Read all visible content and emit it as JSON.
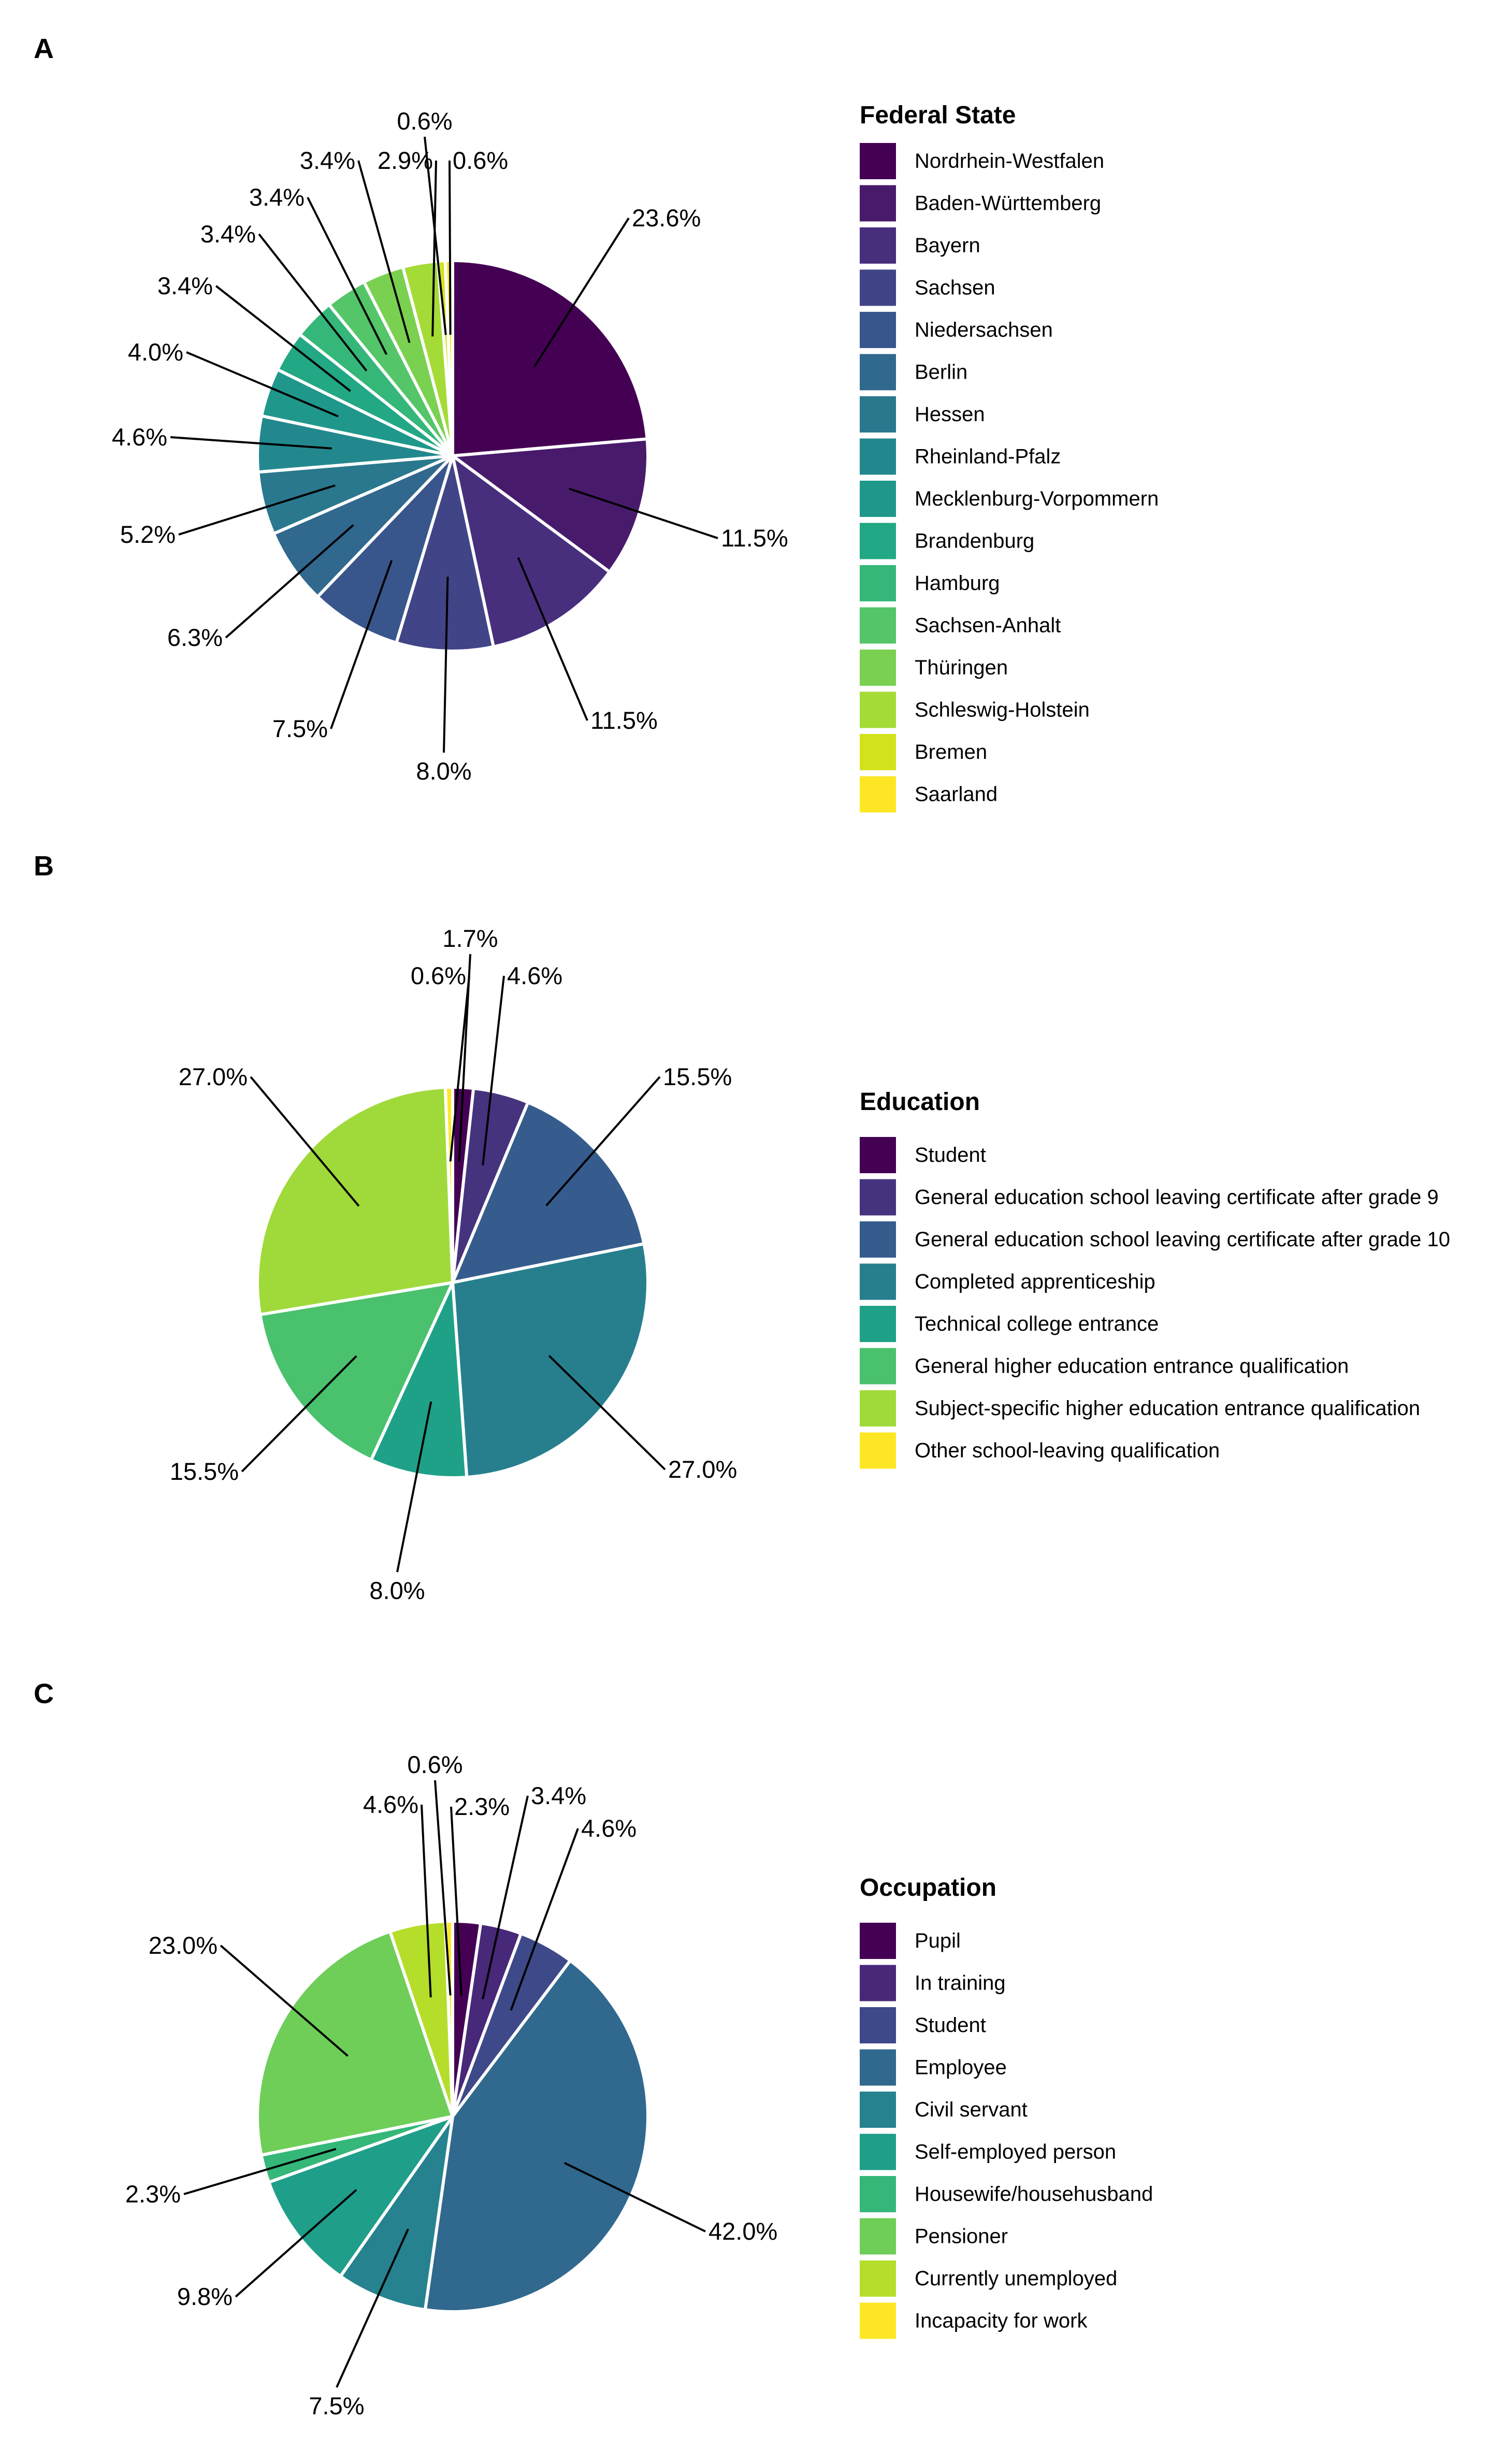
{
  "chart_data": [
    {
      "type": "pie",
      "panel": "A",
      "legend_title": "Federal State",
      "categories": [
        "Nordrhein-Westfalen",
        "Baden-Württemberg",
        "Bayern",
        "Sachsen",
        "Niedersachsen",
        "Berlin",
        "Hessen",
        "Rheinland-Pfalz",
        "Mecklenburg-Vorpommern",
        "Brandenburg",
        "Hamburg",
        "Sachsen-Anhalt",
        "Thüringen",
        "Schleswig-Holstein",
        "Bremen",
        "Saarland"
      ],
      "values": [
        23.6,
        11.5,
        11.5,
        8.0,
        7.5,
        6.3,
        5.2,
        4.6,
        4.0,
        3.4,
        3.4,
        3.4,
        3.4,
        2.9,
        0.6,
        0.6
      ],
      "labels": [
        "23.6%",
        "11.5%",
        "11.5%",
        "8.0%",
        "7.5%",
        "6.3%",
        "5.2%",
        "4.6%",
        "4.0%",
        "3.4%",
        "3.4%",
        "3.4%",
        "3.4%",
        "2.9%",
        "0.6%",
        "0.6%"
      ],
      "colors": [
        "#440154",
        "#481a6c",
        "#472f7d",
        "#414487",
        "#39568c",
        "#31688e",
        "#2a788e",
        "#23888e",
        "#1f988b",
        "#22a884",
        "#35b779",
        "#54c568",
        "#7ad151",
        "#a5db36",
        "#d2e21b",
        "#fde725"
      ],
      "legend_position": "right"
    },
    {
      "type": "pie",
      "panel": "B",
      "legend_title": "Education",
      "categories": [
        "Student",
        "General education school leaving certificate after grade 9",
        "General education school leaving certificate after grade 10",
        "Completed apprenticeship",
        "Technical college entrance",
        "General higher education entrance qualification",
        "Subject-specific higher education entrance qualification",
        "Other school-leaving qualification"
      ],
      "values": [
        1.7,
        4.6,
        15.5,
        27.0,
        8.0,
        15.5,
        27.0,
        0.6
      ],
      "labels": [
        "1.7%",
        "4.6%",
        "15.5%",
        "27.0%",
        "8.0%",
        "15.5%",
        "27.0%",
        "0.6%"
      ],
      "colors": [
        "#440154",
        "#46337e",
        "#365c8d",
        "#277f8e",
        "#1fa187",
        "#4ac16d",
        "#9fda3a",
        "#fde725"
      ],
      "legend_position": "right"
    },
    {
      "type": "pie",
      "panel": "C",
      "legend_title": "Occupation",
      "categories": [
        "Pupil",
        "In training",
        "Student",
        "Employee",
        "Civil servant",
        "Self-employed person",
        "Housewife/househusband",
        "Pensioner",
        "Currently unemployed",
        "Incapacity for work"
      ],
      "values": [
        2.3,
        3.4,
        4.6,
        42.0,
        7.5,
        9.8,
        2.3,
        23.0,
        4.6,
        0.6
      ],
      "labels": [
        "2.3%",
        "3.4%",
        "4.6%",
        "42.0%",
        "7.5%",
        "9.8%",
        "2.3%",
        "23.0%",
        "4.6%",
        "0.6%"
      ],
      "colors": [
        "#440154",
        "#482878",
        "#3e4989",
        "#31688e",
        "#26828e",
        "#1f9e89",
        "#35b779",
        "#6ece58",
        "#b5de2b",
        "#fde725"
      ],
      "legend_position": "right"
    }
  ]
}
